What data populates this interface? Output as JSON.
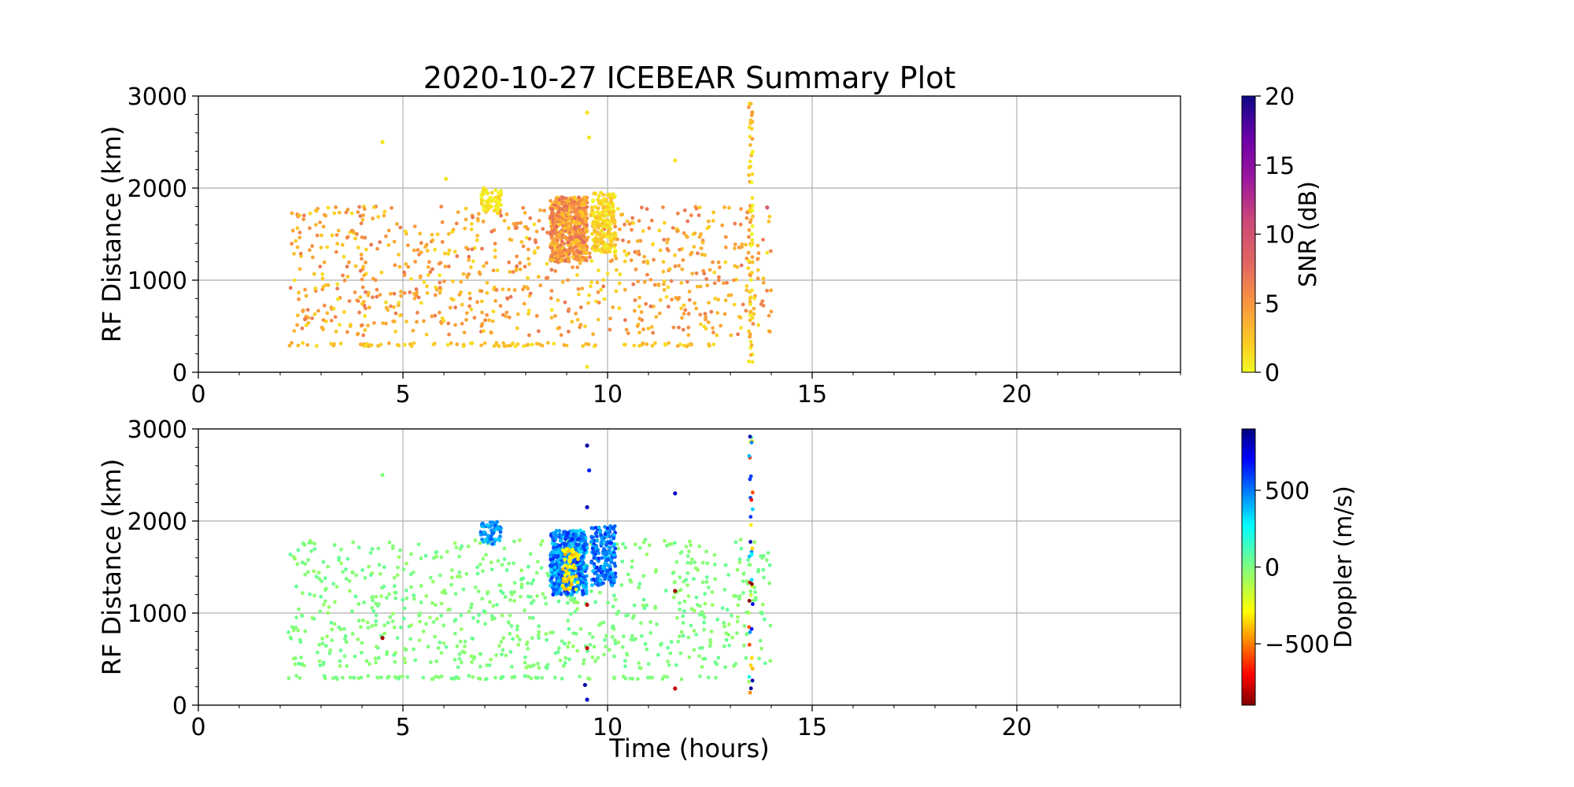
{
  "chart_data": [
    {
      "type": "scatter",
      "panel": "top",
      "title": "2020-10-27 ICEBEAR Summary Plot",
      "xlabel": "",
      "ylabel": "RF Distance (km)",
      "xlim": [
        0,
        24
      ],
      "ylim": [
        0,
        3000
      ],
      "xticks": [
        0,
        5,
        10,
        15,
        20
      ],
      "yticks": [
        0,
        1000,
        2000,
        3000
      ],
      "grid": true,
      "colorbar": {
        "label": "SNR (dB)",
        "colormap": "plasma_r",
        "range": [
          0,
          20
        ],
        "ticks": [
          0,
          5,
          10,
          15,
          20
        ]
      },
      "clusters": [
        {
          "x": [
            2.2,
            14.0
          ],
          "y": [
            400,
            1800
          ],
          "count": 820,
          "c": [
            1,
            7
          ]
        },
        {
          "x": [
            2.2,
            13.0
          ],
          "y": [
            280,
            320
          ],
          "count": 90,
          "c": [
            1,
            4
          ]
        },
        {
          "x": [
            6.9,
            7.4
          ],
          "y": [
            1750,
            2000
          ],
          "count": 70,
          "c": [
            0,
            2
          ]
        },
        {
          "x": [
            8.6,
            9.5
          ],
          "y": [
            1200,
            1900
          ],
          "count": 600,
          "c": [
            2,
            8
          ]
        },
        {
          "x": [
            9.6,
            10.2
          ],
          "y": [
            1300,
            1950
          ],
          "count": 220,
          "c": [
            0,
            3
          ]
        },
        {
          "x": [
            13.45,
            13.55
          ],
          "y": [
            100,
            2950
          ],
          "count": 70,
          "c": [
            0,
            5
          ]
        }
      ],
      "points": [
        {
          "x": 4.5,
          "y": 2500,
          "c": 1
        },
        {
          "x": 9.5,
          "y": 2820,
          "c": 1
        },
        {
          "x": 9.55,
          "y": 2550,
          "c": 1
        },
        {
          "x": 11.65,
          "y": 2300,
          "c": 1
        },
        {
          "x": 6.05,
          "y": 2100,
          "c": 1
        },
        {
          "x": 9.5,
          "y": 60,
          "c": 1
        },
        {
          "x": 13.9,
          "y": 1790,
          "c": 9
        }
      ]
    },
    {
      "type": "scatter",
      "panel": "bottom",
      "title": "",
      "xlabel": "Time (hours)",
      "ylabel": "RF Distance (km)",
      "xlim": [
        0,
        24
      ],
      "ylim": [
        0,
        3000
      ],
      "xticks": [
        0,
        5,
        10,
        15,
        20
      ],
      "yticks": [
        0,
        1000,
        2000,
        3000
      ],
      "grid": true,
      "colorbar": {
        "label": "Doppler (m/s)",
        "colormap": "jet_r",
        "range": [
          -900,
          900
        ],
        "ticks": [
          -500,
          0,
          500
        ],
        "tick_labels": [
          "−500",
          "0",
          "500"
        ]
      },
      "clusters": [
        {
          "x": [
            2.2,
            14.0
          ],
          "y": [
            400,
            1800
          ],
          "count": 760,
          "c": [
            -60,
            60
          ]
        },
        {
          "x": [
            2.2,
            13.0
          ],
          "y": [
            280,
            320
          ],
          "count": 80,
          "c": [
            -40,
            40
          ]
        },
        {
          "x": [
            6.9,
            7.4
          ],
          "y": [
            1750,
            2000
          ],
          "count": 60,
          "c": [
            350,
            550
          ]
        },
        {
          "x": [
            8.6,
            9.5
          ],
          "y": [
            1200,
            1900
          ],
          "count": 520,
          "c": [
            300,
            650
          ]
        },
        {
          "x": [
            8.9,
            9.3
          ],
          "y": [
            1250,
            1700
          ],
          "count": 60,
          "c": [
            -420,
            -250
          ]
        },
        {
          "x": [
            9.6,
            10.2
          ],
          "y": [
            1300,
            1950
          ],
          "count": 200,
          "c": [
            350,
            650
          ]
        },
        {
          "x": [
            13.45,
            13.55
          ],
          "y": [
            100,
            2950
          ],
          "count": 40,
          "c": [
            -900,
            900
          ]
        }
      ],
      "points": [
        {
          "x": 4.5,
          "y": 2500,
          "c": 0
        },
        {
          "x": 9.5,
          "y": 2820,
          "c": 850
        },
        {
          "x": 9.55,
          "y": 2550,
          "c": 650
        },
        {
          "x": 9.5,
          "y": 2150,
          "c": 800
        },
        {
          "x": 11.65,
          "y": 2300,
          "c": 800
        },
        {
          "x": 9.5,
          "y": 60,
          "c": 800
        },
        {
          "x": 9.45,
          "y": 220,
          "c": 850
        },
        {
          "x": 11.65,
          "y": 180,
          "c": -800
        },
        {
          "x": 11.65,
          "y": 1240,
          "c": -850
        },
        {
          "x": 4.5,
          "y": 730,
          "c": -850
        },
        {
          "x": 9.5,
          "y": 620,
          "c": -800
        },
        {
          "x": 9.5,
          "y": 1090,
          "c": -800
        }
      ]
    }
  ]
}
